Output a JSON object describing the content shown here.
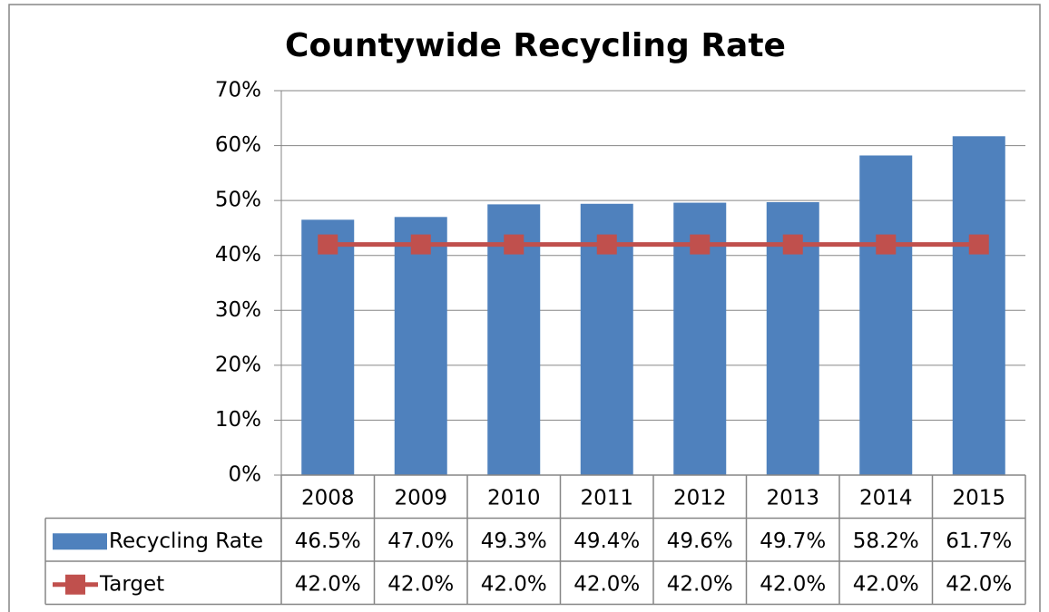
{
  "chart_data": {
    "type": "bar-line",
    "title": "Countywide Recycling Rate",
    "categories": [
      "2008",
      "2009",
      "2010",
      "2011",
      "2012",
      "2013",
      "2014",
      "2015"
    ],
    "series": [
      {
        "name": "Recycling Rate",
        "type": "bar",
        "color": "#4f81bd",
        "values": [
          46.5,
          47.0,
          49.3,
          49.4,
          49.6,
          49.7,
          58.2,
          61.7
        ],
        "value_labels": [
          "46.5%",
          "47.0%",
          "49.3%",
          "49.4%",
          "49.6%",
          "49.7%",
          "58.2%",
          "61.7%"
        ]
      },
      {
        "name": "Target",
        "type": "line",
        "color": "#c0504d",
        "values": [
          42.0,
          42.0,
          42.0,
          42.0,
          42.0,
          42.0,
          42.0,
          42.0
        ],
        "value_labels": [
          "42.0%",
          "42.0%",
          "42.0%",
          "42.0%",
          "42.0%",
          "42.0%",
          "42.0%",
          "42.0%"
        ]
      }
    ],
    "ylim": [
      0,
      70
    ],
    "yticks": [
      {
        "value": 0,
        "label": "0%"
      },
      {
        "value": 10,
        "label": "10%"
      },
      {
        "value": 20,
        "label": "20%"
      },
      {
        "value": 30,
        "label": "30%"
      },
      {
        "value": 40,
        "label": "40%"
      },
      {
        "value": 50,
        "label": "50%"
      },
      {
        "value": 60,
        "label": "60%"
      },
      {
        "value": 70,
        "label": "70%"
      }
    ],
    "grid": true,
    "data_table": true
  }
}
